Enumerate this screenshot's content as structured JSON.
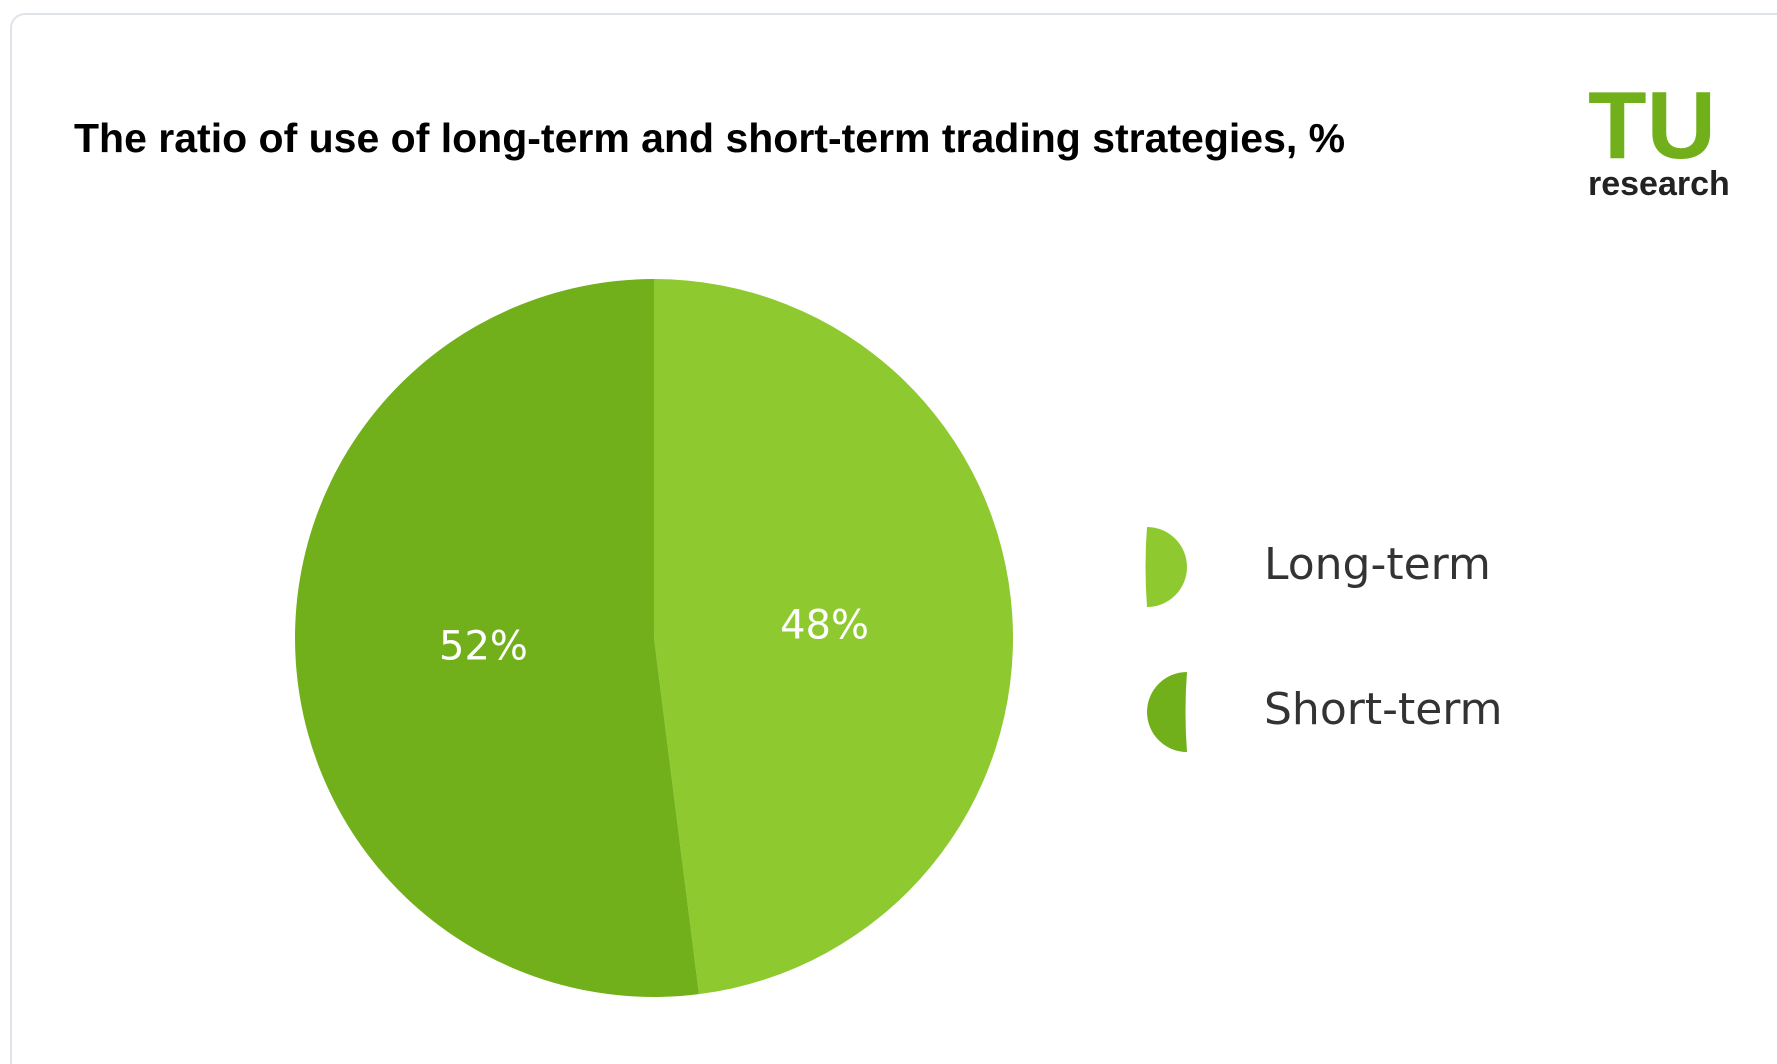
{
  "chart_data": {
    "type": "pie",
    "title": "The ratio of use of long-term and short-term trading strategies, %",
    "logo": {
      "mark": "TU",
      "text": "research"
    },
    "categories": [
      "Long-term",
      "Short-term"
    ],
    "values": [
      48,
      52
    ],
    "value_labels": [
      "48%",
      "52%"
    ],
    "colors": [
      "#8dc92f",
      "#72b01b"
    ],
    "legend": "right"
  }
}
